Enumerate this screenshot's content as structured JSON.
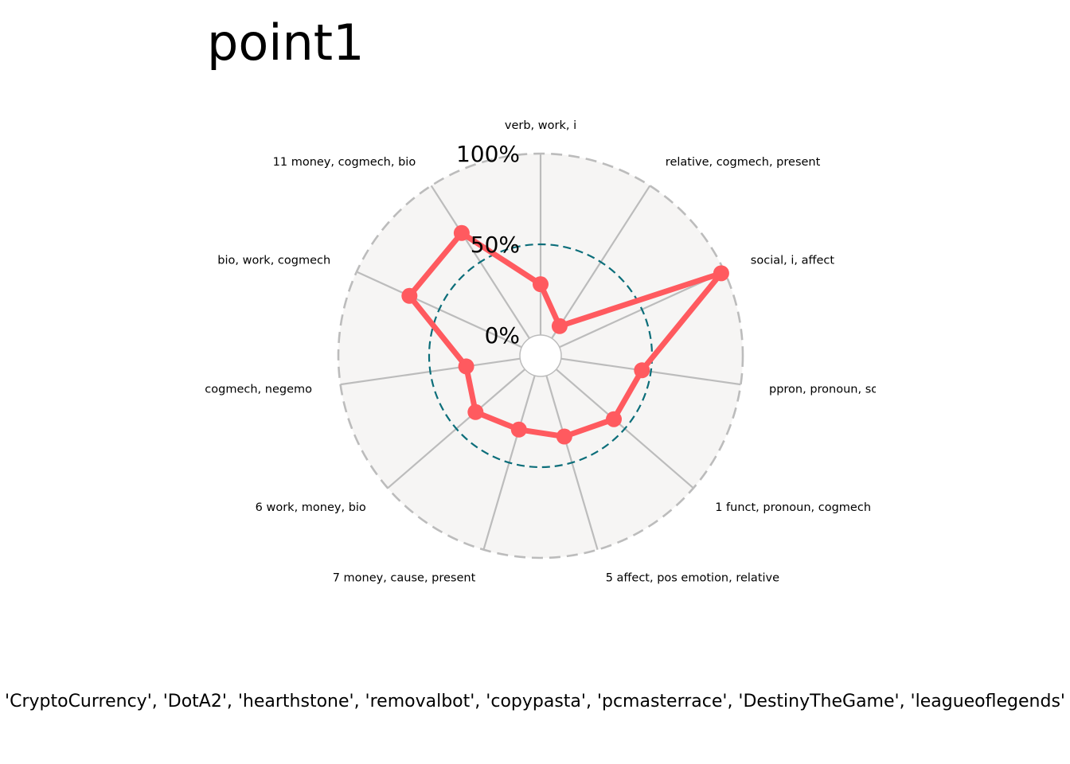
{
  "chart_data": {
    "type": "radar",
    "title": "point1",
    "axes": [
      "verb, work, i",
      "relative, cogmech, present",
      "social, i, affect",
      "ppron, pronoun, social",
      "1 funct, pronoun, cogmech",
      "5 affect, pos emotion, relative",
      "7 money, cause, present",
      "6 work, money, bio",
      "cogmech, negemo",
      "bio, work, cogmech",
      "11 money, cogmech, bio"
    ],
    "series": [
      {
        "values": [
          0.28,
          0.08,
          0.98,
          0.45,
          0.42,
          0.35,
          0.31,
          0.36,
          0.3,
          0.68,
          0.69
        ]
      }
    ],
    "radial_ticks": [
      {
        "value": 0.0,
        "label": "0%"
      },
      {
        "value": 0.5,
        "label": "50%"
      },
      {
        "value": 1.0,
        "label": "100%"
      }
    ],
    "ylim": [
      0,
      1
    ],
    "footer": "'CryptoCurrency', 'DotA2', 'hearthstone', 'removalbot', 'copypasta', 'pcmasterrace', 'DestinyTheGame', 'leagueoflegends'",
    "colors": {
      "series": "#ff5a5f",
      "background_fill": "#f6f5f4",
      "spokes": "#bcbcbc",
      "outer_ring": "#bcbcbc",
      "mid_ring": "#0c6e7a"
    }
  }
}
